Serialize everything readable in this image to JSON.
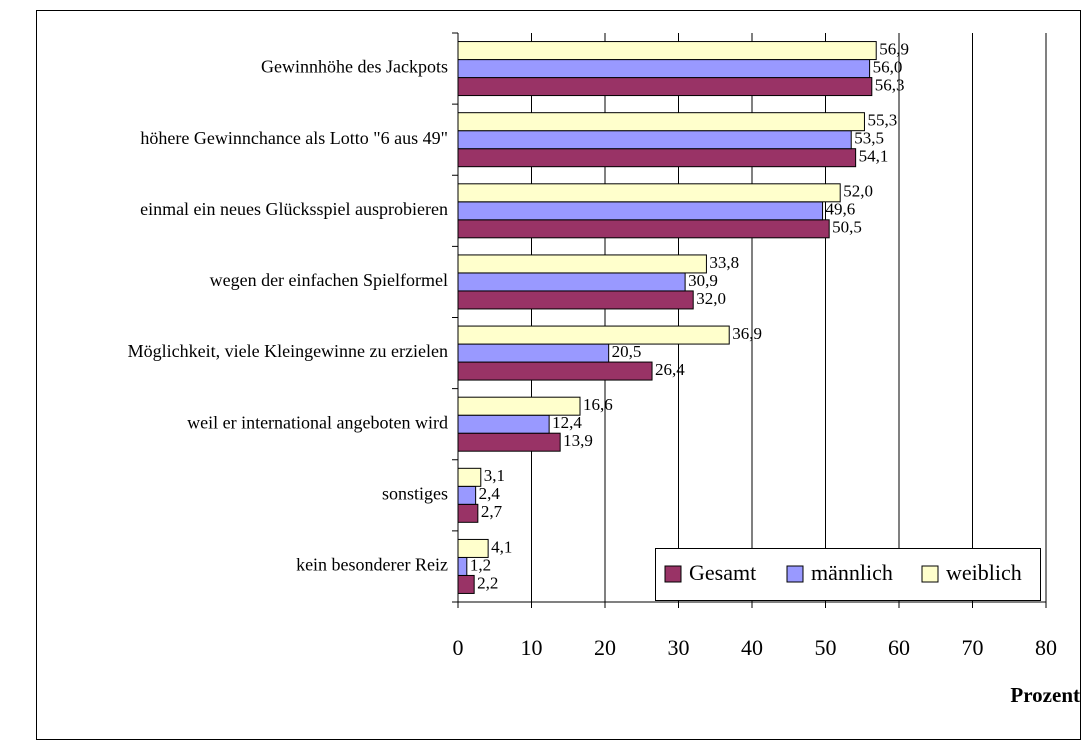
{
  "chart_data": {
    "type": "bar",
    "orientation": "horizontal",
    "categories": [
      "Gewinnhöhe des Jackpots",
      "höhere Gewinnchance als Lotto \"6 aus 49\"",
      "einmal ein neues Glücksspiel ausprobieren",
      "wegen der einfachen Spielformel",
      "Möglichkeit, viele Kleingewinne zu erzielen",
      "weil er international angeboten wird",
      "sonstiges",
      "kein besonderer Reiz"
    ],
    "series": [
      {
        "name": "Gesamt",
        "color": "#993366",
        "values": [
          56.3,
          54.1,
          50.5,
          32.0,
          26.4,
          13.9,
          2.7,
          2.2
        ],
        "value_labels": [
          "56,3",
          "54,1",
          "50,5",
          "32,0",
          "26,4",
          "13,9",
          "2,7",
          "2,2"
        ]
      },
      {
        "name": "männlich",
        "color": "#9999ff",
        "values": [
          56.0,
          53.5,
          49.6,
          30.9,
          20.5,
          12.4,
          2.4,
          1.2
        ],
        "value_labels": [
          "56,0",
          "53,5",
          "49,6",
          "30,9",
          "20,5",
          "12,4",
          "2,4",
          "1,2"
        ]
      },
      {
        "name": "weiblich",
        "color": "#ffffcc",
        "values": [
          56.9,
          55.3,
          52.0,
          33.8,
          36.9,
          16.6,
          3.1,
          4.1
        ],
        "value_labels": [
          "56,9",
          "55,3",
          "52,0",
          "33,8",
          "36,9",
          "16,6",
          "3,1",
          "4,1"
        ]
      }
    ],
    "x_label": "Prozent",
    "xlim": [
      0,
      80
    ],
    "xticks": [
      0,
      10,
      20,
      30,
      40,
      50,
      60,
      70,
      80
    ],
    "grid": true,
    "legend": "lower right"
  }
}
